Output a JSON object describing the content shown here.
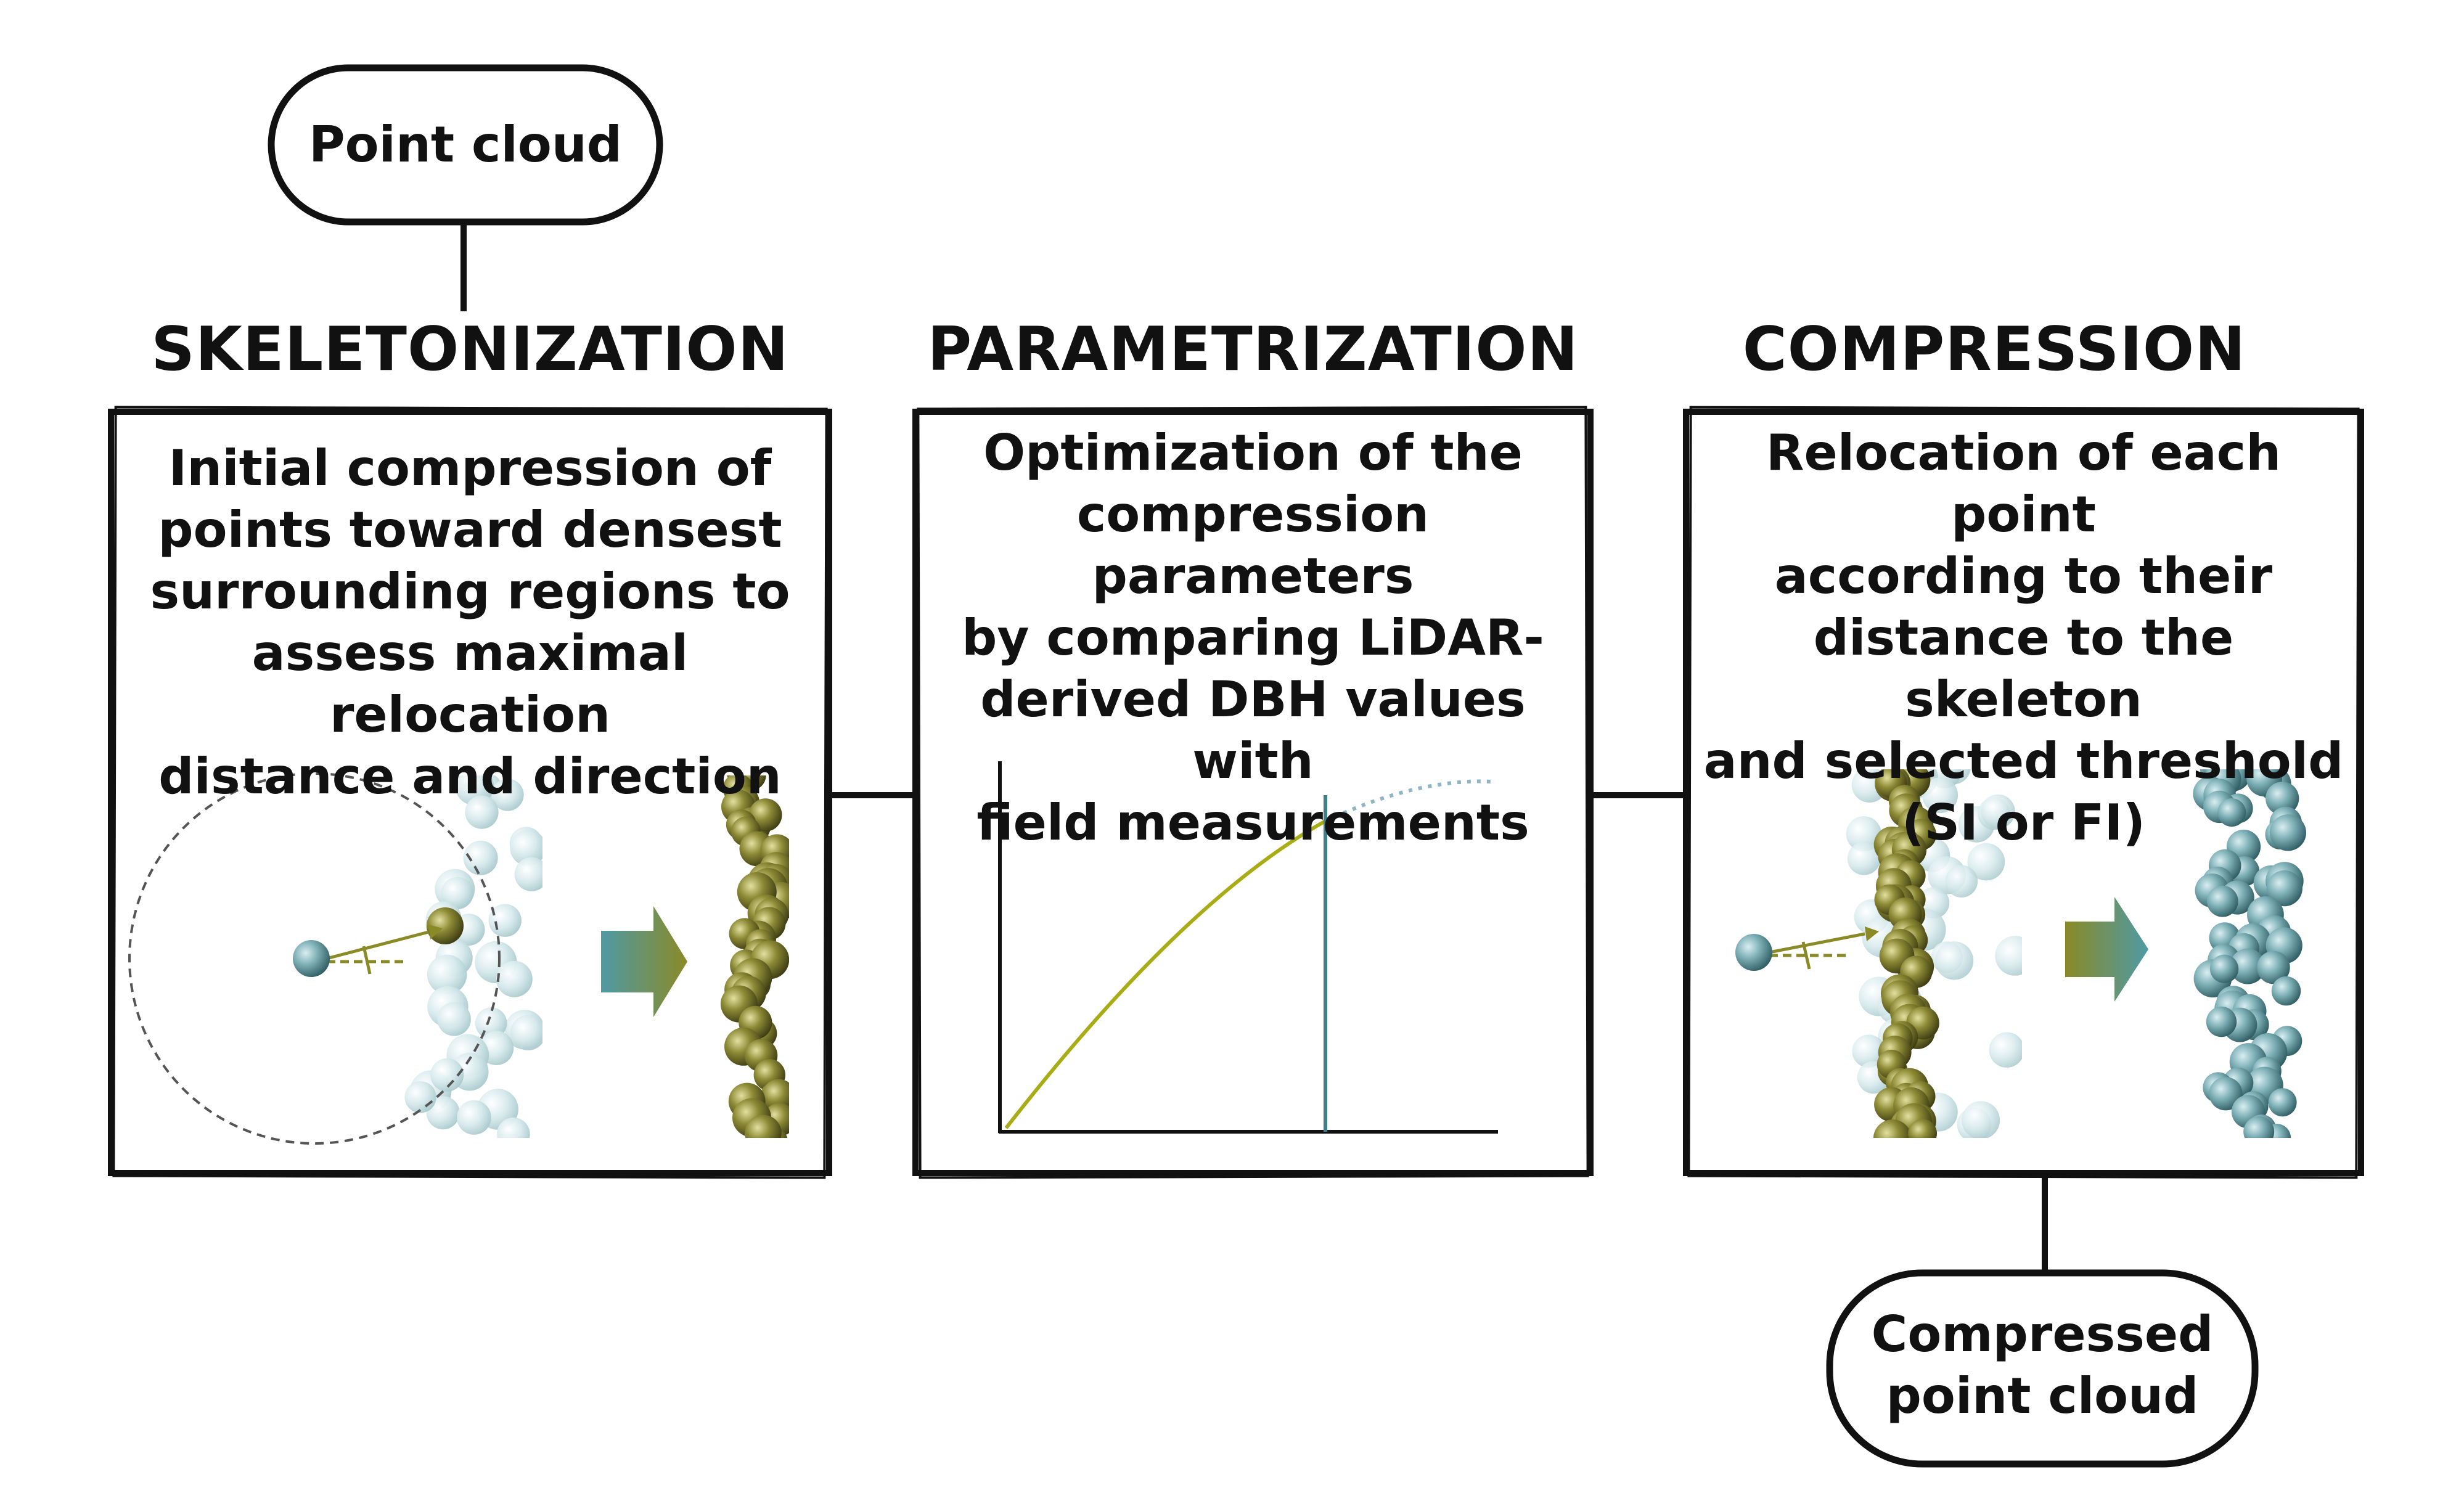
{
  "input_node": {
    "label": "Point cloud"
  },
  "output_node": {
    "label_line1": "Compressed",
    "label_line2": "point cloud"
  },
  "stages": [
    {
      "title": "SKELETONIZATION",
      "lines": [
        "Initial compression of",
        "points toward densest",
        "surrounding regions to",
        "assess maximal relocation",
        "distance and direction"
      ]
    },
    {
      "title": "PARAMETRIZATION",
      "lines": [
        "Optimization of the",
        "compression parameters",
        "by comparing LiDAR-",
        "derived DBH values with",
        "field measurements"
      ]
    },
    {
      "title": "COMPRESSION",
      "lines": [
        "Relocation of each point",
        "according to their",
        "distance to the skeleton",
        "and selected threshold",
        "(SI or FI)"
      ]
    }
  ],
  "colors": {
    "outline": "#111111",
    "teal": "#5f9ba3",
    "olive": "#7d7a2c",
    "pale_teal": "#c6dfe3",
    "curve": "#a8ad16",
    "vline": "#3f7f8c",
    "dotted": "#8fb4c4"
  }
}
